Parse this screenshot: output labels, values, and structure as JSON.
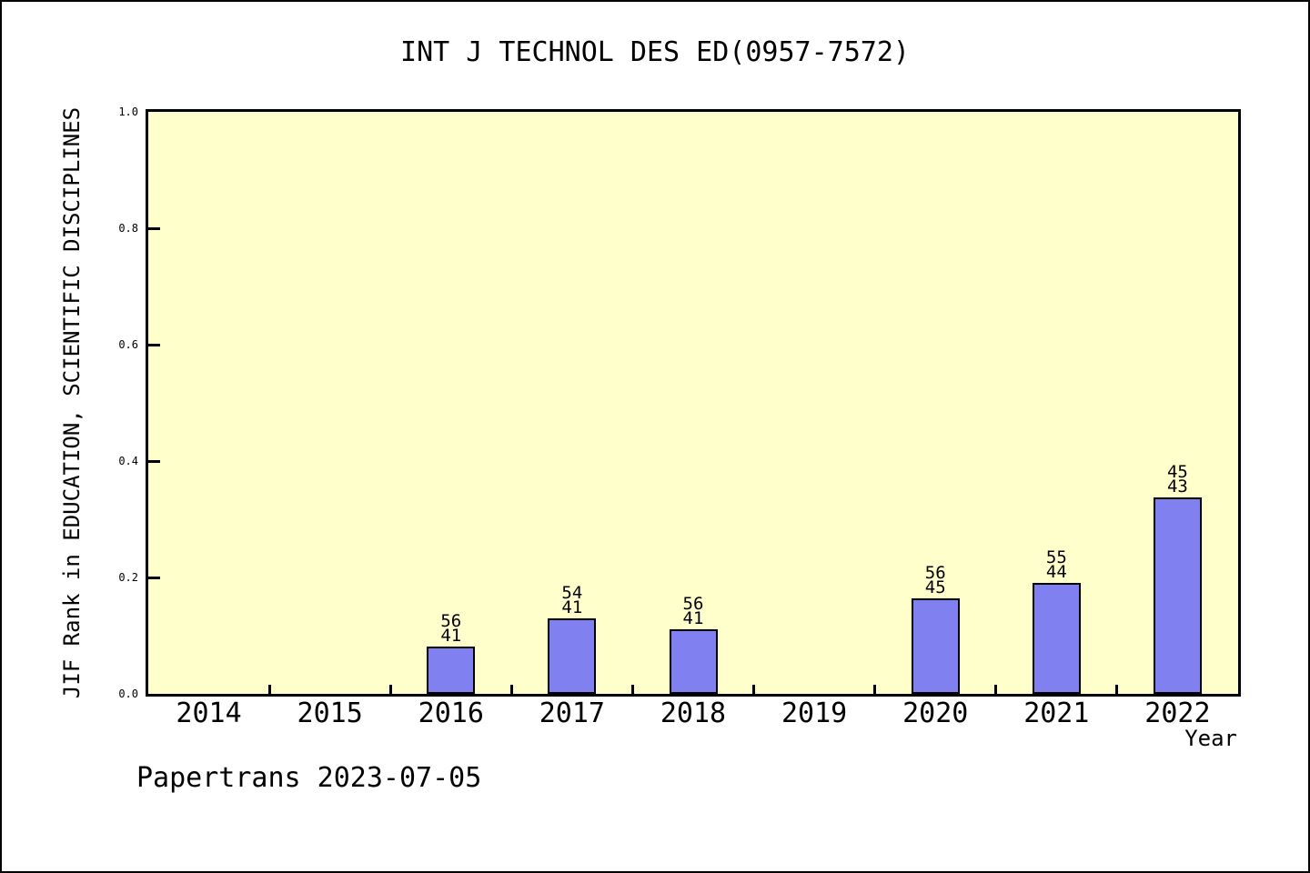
{
  "page": {
    "footer": "Papertrans 2023-07-05"
  },
  "chart_data": {
    "type": "bar",
    "title": "INT J TECHNOL DES ED(0957-7572)",
    "xlabel": "Year",
    "ylabel": "JIF Rank in EDUCATION, SCIENTIFIC DISCIPLINES",
    "categories": [
      "2014",
      "2015",
      "2016",
      "2017",
      "2018",
      "2019",
      "2020",
      "2021",
      "2022"
    ],
    "values": [
      null,
      null,
      0.081,
      0.129,
      0.111,
      null,
      0.164,
      0.19,
      0.337
    ],
    "bar_annotations": [
      null,
      null,
      [
        "56",
        "41"
      ],
      [
        "54",
        "41"
      ],
      [
        "56",
        "41"
      ],
      null,
      [
        "56",
        "45"
      ],
      [
        "55",
        "44"
      ],
      [
        "45",
        "43"
      ]
    ],
    "ylim": [
      0,
      1
    ],
    "ytick_labels": [
      "0.0",
      "0.2",
      "0.4",
      "0.6",
      "0.8",
      "1.0"
    ],
    "grid": false,
    "legend_position": "none",
    "colors": {
      "bar_fill": "#8080f0",
      "bar_edge": "#000000",
      "plot_background": "#ffffcc",
      "page_background": "#ffffff",
      "text": "#000000"
    }
  }
}
